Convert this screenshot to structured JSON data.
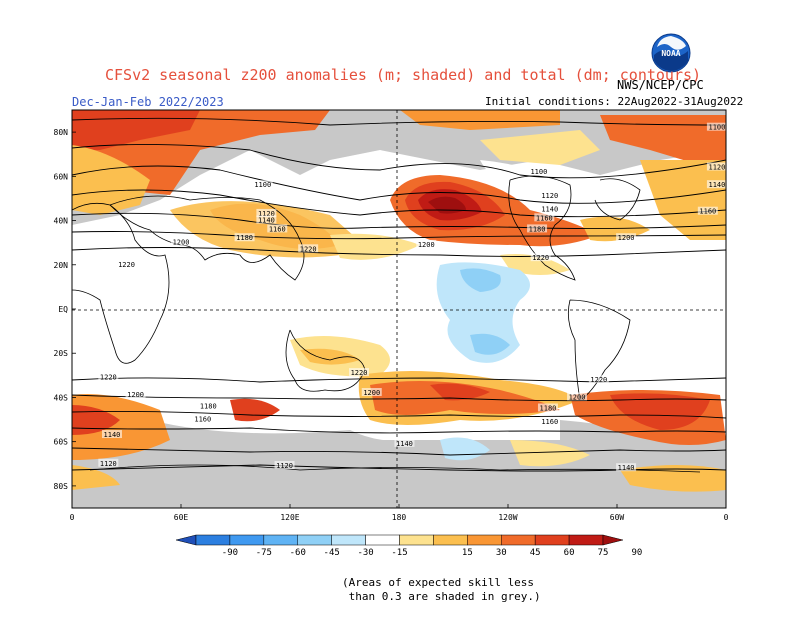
{
  "title": "CFSv2 seasonal z200 anomalies (m; shaded) and total (dm; contours)",
  "season": "Dec-Jan-Feb 2022/2023",
  "initial_conditions": "Initial conditions: 22Aug2022-31Aug2022",
  "agency": "NWS/NCEP/CPC",
  "logo_text": "NOAA",
  "note": "(Areas of expected skill less\n than 0.3 are shaded in grey.)",
  "lat_labels": [
    "80N",
    "60N",
    "40N",
    "20N",
    "EQ",
    "20S",
    "40S",
    "60S",
    "80S"
  ],
  "lon_labels": [
    "0",
    "60E",
    "120E",
    "180",
    "120W",
    "60W",
    "0"
  ],
  "colorbar": {
    "ticks": [
      "-90",
      "-75",
      "-60",
      "-45",
      "-30",
      "-15",
      "15",
      "30",
      "45",
      "60",
      "75",
      "90"
    ],
    "colors": [
      "#1f4fb8",
      "#2c7fe0",
      "#3f99f0",
      "#5fb3f4",
      "#8fd0f6",
      "#bfe6fa",
      "#ffffff",
      "#fde28f",
      "#fbbf4f",
      "#f99634",
      "#f06b2a",
      "#e0401e",
      "#c01b15",
      "#9e0f0f"
    ]
  },
  "contour_labels": [
    {
      "text": "1100",
      "lon": -5,
      "lat": 82
    },
    {
      "text": "1120",
      "lon": -5,
      "lat": 64
    },
    {
      "text": "1140",
      "lon": -5,
      "lat": 56
    },
    {
      "text": "1160",
      "lon": -10,
      "lat": 44
    },
    {
      "text": "1200",
      "lon": 60,
      "lat": 30
    },
    {
      "text": "1220",
      "lon": 30,
      "lat": 20
    },
    {
      "text": "1180",
      "lon": 95,
      "lat": 32
    },
    {
      "text": "1100",
      "lon": 105,
      "lat": 56
    },
    {
      "text": "1120",
      "lon": 107,
      "lat": 43
    },
    {
      "text": "1140",
      "lon": 107,
      "lat": 40
    },
    {
      "text": "1160",
      "lon": 113,
      "lat": 36
    },
    {
      "text": "1220",
      "lon": 130,
      "lat": 27
    },
    {
      "text": "1200",
      "lon": 195,
      "lat": 29
    },
    {
      "text": "1100",
      "lon": 257,
      "lat": 62
    },
    {
      "text": "1120",
      "lon": 263,
      "lat": 51
    },
    {
      "text": "1140",
      "lon": 263,
      "lat": 45
    },
    {
      "text": "1160",
      "lon": 260,
      "lat": 41
    },
    {
      "text": "1180",
      "lon": 256,
      "lat": 36
    },
    {
      "text": "1200",
      "lon": 305,
      "lat": 32
    },
    {
      "text": "1220",
      "lon": 258,
      "lat": 23
    },
    {
      "text": "1220",
      "lon": 20,
      "lat": -31
    },
    {
      "text": "1200",
      "lon": 35,
      "lat": -39
    },
    {
      "text": "1180",
      "lon": 75,
      "lat": -44
    },
    {
      "text": "1160",
      "lon": 72,
      "lat": -50
    },
    {
      "text": "1140",
      "lon": 22,
      "lat": -57
    },
    {
      "text": "1120",
      "lon": 20,
      "lat": -70
    },
    {
      "text": "1220",
      "lon": 158,
      "lat": -29
    },
    {
      "text": "1200",
      "lon": 165,
      "lat": -38
    },
    {
      "text": "1120",
      "lon": 117,
      "lat": -71
    },
    {
      "text": "1140",
      "lon": 183,
      "lat": -61
    },
    {
      "text": "1220",
      "lon": 290,
      "lat": -32
    },
    {
      "text": "1200",
      "lon": 278,
      "lat": -40
    },
    {
      "text": "1180",
      "lon": 262,
      "lat": -45
    },
    {
      "text": "1160",
      "lon": 263,
      "lat": -51
    },
    {
      "text": "1140",
      "lon": 305,
      "lat": -72
    }
  ]
}
